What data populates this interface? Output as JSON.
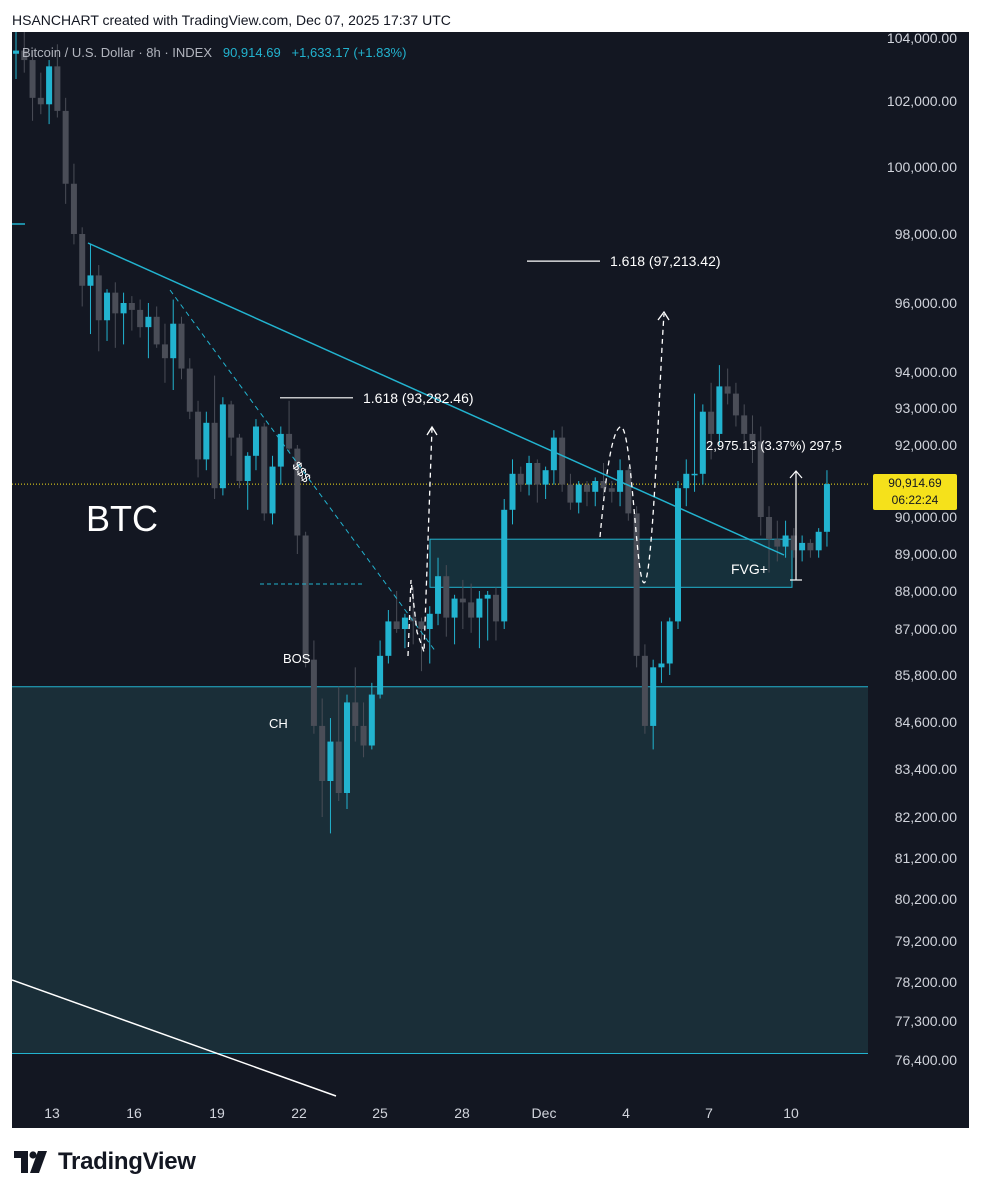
{
  "header": {
    "title": "HSANCHART created with TradingView.com, Dec 07, 2025 17:37 UTC"
  },
  "ticker": {
    "symbol": "Bitcoin / U.S. Dollar · 8h · INDEX",
    "price": "90,914.69",
    "change": "+1,633.17 (+1.83%)"
  },
  "chart_label": "BTC",
  "price_badge": {
    "price": "90,914.69",
    "countdown": "06:22:24"
  },
  "annotations": {
    "fib_upper": "1.618 (97,213.42)",
    "fib_lower": "1.618 (93,282.46)",
    "measure": "2,975.13 (3.37%) 297,5",
    "fvg": "FVG+",
    "bos": "BOS",
    "ch": "CH",
    "liquidity": "$$$"
  },
  "footer": {
    "brand": "TradingView"
  },
  "colors": {
    "background": "#131722",
    "bull": "#22b3cf",
    "bear": "#4a4d57",
    "trendline": "#22b3cf",
    "zone": "#1a2e38",
    "badge": "#f5e11b"
  },
  "chart_data": {
    "type": "candlestick",
    "title": "Bitcoin / U.S. Dollar · 8h · INDEX",
    "y_ticks": [
      104000,
      102000,
      100000,
      98000,
      96000,
      94000,
      93000,
      92000,
      90000,
      89000,
      88000,
      87000,
      85800,
      84600,
      83400,
      82200,
      81200,
      80200,
      79200,
      78200,
      77300,
      76400
    ],
    "y_tick_labels": [
      "104,000.00",
      "102,000.00",
      "100,000.00",
      "98,000.00",
      "96,000.00",
      "94,000.00",
      "93,000.00",
      "92,000.00",
      "90,000.00",
      "89,000.00",
      "88,000.00",
      "87,000.00",
      "85,800.00",
      "84,600.00",
      "83,400.00",
      "82,200.00",
      "81,200.00",
      "80,200.00",
      "79,200.00",
      "78,200.00",
      "77,300.00",
      "76,400.00"
    ],
    "x_ticks": [
      "13",
      "16",
      "19",
      "22",
      "25",
      "28",
      "Dec",
      "4",
      "7",
      "10"
    ],
    "last_price": 90914.69,
    "candles": [
      [
        103500,
        104200,
        102700,
        103600
      ],
      [
        103600,
        104500,
        102900,
        103300
      ],
      [
        103300,
        103600,
        101400,
        102100
      ],
      [
        102100,
        102900,
        101600,
        101900
      ],
      [
        101900,
        103300,
        101300,
        103100
      ],
      [
        103100,
        103800,
        101500,
        101700
      ],
      [
        101700,
        102100,
        98900,
        99500
      ],
      [
        99500,
        100100,
        97700,
        98000
      ],
      [
        98000,
        98200,
        95900,
        96500
      ],
      [
        96500,
        97700,
        95100,
        96800
      ],
      [
        96800,
        97100,
        94600,
        95500
      ],
      [
        95500,
        96400,
        94900,
        96300
      ],
      [
        96300,
        96600,
        94700,
        95700
      ],
      [
        95700,
        96300,
        94800,
        96000
      ],
      [
        96000,
        96200,
        95200,
        95800
      ],
      [
        95800,
        96100,
        95000,
        95300
      ],
      [
        95300,
        96000,
        94400,
        95600
      ],
      [
        95600,
        95900,
        94700,
        94800
      ],
      [
        94800,
        95400,
        93700,
        94400
      ],
      [
        94400,
        96100,
        93500,
        95400
      ],
      [
        95400,
        95600,
        93800,
        94100
      ],
      [
        94100,
        94400,
        92700,
        92900
      ],
      [
        92900,
        93200,
        91100,
        91600
      ],
      [
        91600,
        92900,
        91300,
        92600
      ],
      [
        92600,
        93900,
        90500,
        90800
      ],
      [
        90800,
        93300,
        90600,
        93100
      ],
      [
        93100,
        93200,
        91700,
        92200
      ],
      [
        92200,
        92300,
        90800,
        91000
      ],
      [
        91000,
        91800,
        90200,
        91700
      ],
      [
        91700,
        92700,
        91300,
        92500
      ],
      [
        92500,
        92600,
        89900,
        90100
      ],
      [
        90100,
        91700,
        89800,
        91400
      ],
      [
        91400,
        92500,
        90900,
        92300
      ],
      [
        92300,
        93200,
        91800,
        91900
      ],
      [
        91900,
        92000,
        89000,
        89500
      ],
      [
        89500,
        89600,
        86000,
        86200
      ],
      [
        86200,
        86700,
        84300,
        84500
      ],
      [
        84500,
        85200,
        82200,
        83100
      ],
      [
        83100,
        84700,
        81800,
        84100
      ],
      [
        84100,
        85500,
        82600,
        82800
      ],
      [
        82800,
        85300,
        82400,
        85100
      ],
      [
        85100,
        86000,
        84100,
        84500
      ],
      [
        84500,
        85100,
        83700,
        84000
      ],
      [
        84000,
        85600,
        83900,
        85300
      ],
      [
        85300,
        86700,
        85200,
        86300
      ],
      [
        86300,
        87500,
        86100,
        87200
      ],
      [
        87200,
        88000,
        86900,
        87000
      ],
      [
        87000,
        87400,
        86500,
        87300
      ],
      [
        87300,
        88100,
        86600,
        87200
      ],
      [
        87200,
        87300,
        85900,
        87000
      ],
      [
        87000,
        87600,
        86100,
        87400
      ],
      [
        87400,
        88900,
        87100,
        88400
      ],
      [
        88400,
        88700,
        86800,
        87300
      ],
      [
        87300,
        87900,
        86600,
        87800
      ],
      [
        87800,
        88300,
        87000,
        87700
      ],
      [
        87700,
        88200,
        86900,
        87300
      ],
      [
        87300,
        88000,
        86500,
        87800
      ],
      [
        87800,
        88000,
        86700,
        87900
      ],
      [
        87900,
        88100,
        86700,
        87200
      ],
      [
        87200,
        90500,
        87000,
        90200
      ],
      [
        90200,
        91600,
        89800,
        91200
      ],
      [
        91200,
        91400,
        90700,
        90900
      ],
      [
        90900,
        91700,
        90600,
        91500
      ],
      [
        91500,
        91600,
        90400,
        90900
      ],
      [
        90900,
        91400,
        90500,
        91300
      ],
      [
        91300,
        92400,
        90900,
        92200
      ],
      [
        92200,
        92500,
        90700,
        90900
      ],
      [
        90900,
        91200,
        90200,
        90400
      ],
      [
        90400,
        91000,
        90100,
        90900
      ],
      [
        90900,
        91000,
        90300,
        90700
      ],
      [
        90700,
        91100,
        90300,
        91000
      ],
      [
        91000,
        91500,
        90600,
        90800
      ],
      [
        90800,
        91000,
        90400,
        90700
      ],
      [
        90700,
        91600,
        90300,
        91300
      ],
      [
        91300,
        91400,
        89900,
        90100
      ],
      [
        90100,
        90300,
        86000,
        86300
      ],
      [
        86300,
        86600,
        84300,
        84500
      ],
      [
        84500,
        86200,
        83900,
        86000
      ],
      [
        86000,
        87200,
        85600,
        86100
      ],
      [
        86100,
        87300,
        85800,
        87200
      ],
      [
        87200,
        91000,
        87000,
        90800
      ],
      [
        90800,
        91600,
        90300,
        91200
      ],
      [
        91200,
        93400,
        90700,
        91200
      ],
      [
        91200,
        93100,
        90900,
        92900
      ],
      [
        92900,
        93700,
        91600,
        92300
      ],
      [
        92300,
        94200,
        92000,
        93600
      ],
      [
        93600,
        94100,
        93100,
        93400
      ],
      [
        93400,
        93700,
        92500,
        92800
      ],
      [
        92800,
        93100,
        91900,
        92300
      ],
      [
        92300,
        92800,
        91500,
        92100
      ],
      [
        92100,
        92500,
        89500,
        90000
      ],
      [
        90000,
        90300,
        88500,
        89400
      ],
      [
        89400,
        89900,
        88800,
        89200
      ],
      [
        89200,
        89900,
        88900,
        89500
      ],
      [
        89500,
        89700,
        88900,
        89100
      ],
      [
        89100,
        89500,
        88800,
        89300
      ],
      [
        89300,
        89400,
        88900,
        89100
      ],
      [
        89100,
        89700,
        88900,
        89600
      ],
      [
        89600,
        91300,
        89200,
        90914.69
      ]
    ],
    "zones": [
      {
        "name": "FVG+",
        "from_index": 59,
        "to_index": 108,
        "low": 88100,
        "high": 89400
      },
      {
        "name": "demand",
        "from_index": 0,
        "to_index": 120,
        "low": 76550,
        "high": 85500
      }
    ],
    "levels": [
      {
        "label": "1.618 (97,213.42)",
        "value": 97213.42
      },
      {
        "label": "1.618 (93,282.46)",
        "value": 93282.46
      }
    ]
  }
}
